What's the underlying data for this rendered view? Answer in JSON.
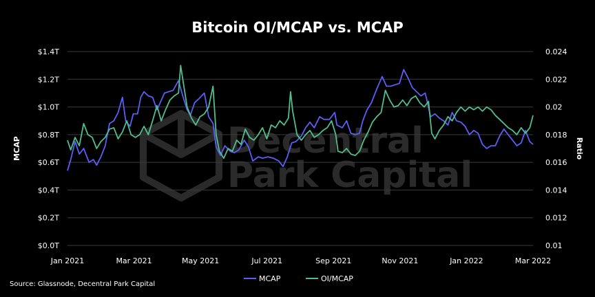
{
  "chart_data": {
    "type": "line",
    "title": "Bitcoin OI/MCAP vs. MCAP",
    "ylabel_left": "MCAP",
    "ylabel_right": "Ratio",
    "y_left_ticks": [
      "$0.0T",
      "$0.2T",
      "$0.4T",
      "$0.6T",
      "$0.8T",
      "$1.0T",
      "$1.2T",
      "$1.4T"
    ],
    "y_left_range": [
      0.0,
      1.4
    ],
    "y_right_ticks": [
      "0.01",
      "0.012",
      "0.014",
      "0.016",
      "0.018",
      "0.02",
      "0.022",
      "0.024"
    ],
    "y_right_range": [
      0.01,
      0.024
    ],
    "x_ticks": [
      "Jan 2021",
      "Mar 2021",
      "May 2021",
      "Jul 2021",
      "Sep 2021",
      "Nov 2021",
      "Jan 2022",
      "Mar 2022"
    ],
    "x_range": [
      "2021-01-01",
      "2022-03-09"
    ],
    "grid": true,
    "legend_position": "bottom-center",
    "series": [
      {
        "name": "MCAP",
        "axis": "left",
        "color": "#5b5ff5",
        "points": [
          [
            "2021-01-01",
            0.54
          ],
          [
            "2021-01-04",
            0.62
          ],
          [
            "2021-01-08",
            0.75
          ],
          [
            "2021-01-12",
            0.66
          ],
          [
            "2021-01-16",
            0.7
          ],
          [
            "2021-01-21",
            0.6
          ],
          [
            "2021-01-25",
            0.62
          ],
          [
            "2021-01-28",
            0.58
          ],
          [
            "2021-02-01",
            0.64
          ],
          [
            "2021-02-05",
            0.72
          ],
          [
            "2021-02-09",
            0.88
          ],
          [
            "2021-02-13",
            0.9
          ],
          [
            "2021-02-17",
            0.96
          ],
          [
            "2021-02-21",
            1.07
          ],
          [
            "2021-02-24",
            0.9
          ],
          [
            "2021-02-28",
            0.86
          ],
          [
            "2021-03-03",
            0.95
          ],
          [
            "2021-03-07",
            0.95
          ],
          [
            "2021-03-10",
            1.07
          ],
          [
            "2021-03-13",
            1.11
          ],
          [
            "2021-03-17",
            1.08
          ],
          [
            "2021-03-21",
            1.07
          ],
          [
            "2021-03-25",
            0.98
          ],
          [
            "2021-03-28",
            1.03
          ],
          [
            "2021-04-01",
            1.1
          ],
          [
            "2021-04-05",
            1.11
          ],
          [
            "2021-04-09",
            1.12
          ],
          [
            "2021-04-14",
            1.19
          ],
          [
            "2021-04-18",
            1.08
          ],
          [
            "2021-04-22",
            0.98
          ],
          [
            "2021-04-25",
            0.94
          ],
          [
            "2021-04-29",
            1.03
          ],
          [
            "2021-05-03",
            1.06
          ],
          [
            "2021-05-08",
            1.1
          ],
          [
            "2021-05-12",
            0.93
          ],
          [
            "2021-05-16",
            0.88
          ],
          [
            "2021-05-19",
            0.71
          ],
          [
            "2021-05-23",
            0.65
          ],
          [
            "2021-05-27",
            0.72
          ],
          [
            "2021-06-01",
            0.68
          ],
          [
            "2021-06-05",
            0.67
          ],
          [
            "2021-06-09",
            0.69
          ],
          [
            "2021-06-14",
            0.76
          ],
          [
            "2021-06-18",
            0.71
          ],
          [
            "2021-06-22",
            0.61
          ],
          [
            "2021-06-27",
            0.64
          ],
          [
            "2021-07-01",
            0.63
          ],
          [
            "2021-07-06",
            0.64
          ],
          [
            "2021-07-11",
            0.63
          ],
          [
            "2021-07-16",
            0.61
          ],
          [
            "2021-07-20",
            0.57
          ],
          [
            "2021-07-24",
            0.64
          ],
          [
            "2021-07-28",
            0.74
          ],
          [
            "2021-08-01",
            0.75
          ],
          [
            "2021-08-06",
            0.79
          ],
          [
            "2021-08-10",
            0.85
          ],
          [
            "2021-08-14",
            0.89
          ],
          [
            "2021-08-18",
            0.85
          ],
          [
            "2021-08-23",
            0.93
          ],
          [
            "2021-08-27",
            0.91
          ],
          [
            "2021-09-01",
            0.91
          ],
          [
            "2021-09-06",
            0.96
          ],
          [
            "2021-09-08",
            0.87
          ],
          [
            "2021-09-13",
            0.85
          ],
          [
            "2021-09-17",
            0.9
          ],
          [
            "2021-09-21",
            0.81
          ],
          [
            "2021-09-25",
            0.8
          ],
          [
            "2021-09-29",
            0.81
          ],
          [
            "2021-10-02",
            0.9
          ],
          [
            "2021-10-06",
            0.98
          ],
          [
            "2021-10-10",
            1.03
          ],
          [
            "2021-10-15",
            1.13
          ],
          [
            "2021-10-20",
            1.22
          ],
          [
            "2021-10-24",
            1.15
          ],
          [
            "2021-10-28",
            1.15
          ],
          [
            "2021-11-01",
            1.16
          ],
          [
            "2021-11-05",
            1.17
          ],
          [
            "2021-11-09",
            1.27
          ],
          [
            "2021-11-13",
            1.21
          ],
          [
            "2021-11-17",
            1.14
          ],
          [
            "2021-11-21",
            1.11
          ],
          [
            "2021-11-25",
            1.08
          ],
          [
            "2021-11-29",
            1.1
          ],
          [
            "2021-12-04",
            0.93
          ],
          [
            "2021-12-08",
            0.95
          ],
          [
            "2021-12-12",
            0.92
          ],
          [
            "2021-12-16",
            0.9
          ],
          [
            "2021-12-20",
            0.87
          ],
          [
            "2021-12-24",
            0.96
          ],
          [
            "2021-12-28",
            0.9
          ],
          [
            "2022-01-01",
            0.89
          ],
          [
            "2022-01-05",
            0.86
          ],
          [
            "2022-01-09",
            0.8
          ],
          [
            "2022-01-13",
            0.83
          ],
          [
            "2022-01-17",
            0.81
          ],
          [
            "2022-01-21",
            0.73
          ],
          [
            "2022-01-25",
            0.7
          ],
          [
            "2022-01-29",
            0.72
          ],
          [
            "2022-02-02",
            0.72
          ],
          [
            "2022-02-06",
            0.79
          ],
          [
            "2022-02-10",
            0.84
          ],
          [
            "2022-02-14",
            0.8
          ],
          [
            "2022-02-18",
            0.76
          ],
          [
            "2022-02-22",
            0.72
          ],
          [
            "2022-02-26",
            0.74
          ],
          [
            "2022-03-02",
            0.83
          ],
          [
            "2022-03-06",
            0.75
          ],
          [
            "2022-03-09",
            0.73
          ]
        ]
      },
      {
        "name": "OI/MCAP",
        "axis": "right",
        "color": "#4fbf8f",
        "points": [
          [
            "2021-01-01",
            0.0176
          ],
          [
            "2021-01-04",
            0.0169
          ],
          [
            "2021-01-08",
            0.0178
          ],
          [
            "2021-01-12",
            0.0172
          ],
          [
            "2021-01-16",
            0.0188
          ],
          [
            "2021-01-20",
            0.018
          ],
          [
            "2021-01-24",
            0.0178
          ],
          [
            "2021-01-28",
            0.017
          ],
          [
            "2021-02-01",
            0.0175
          ],
          [
            "2021-02-05",
            0.0178
          ],
          [
            "2021-02-09",
            0.0184
          ],
          [
            "2021-02-13",
            0.0185
          ],
          [
            "2021-02-17",
            0.0177
          ],
          [
            "2021-02-21",
            0.0182
          ],
          [
            "2021-02-25",
            0.019
          ],
          [
            "2021-03-01",
            0.018
          ],
          [
            "2021-03-05",
            0.0178
          ],
          [
            "2021-03-09",
            0.018
          ],
          [
            "2021-03-13",
            0.0186
          ],
          [
            "2021-03-17",
            0.018
          ],
          [
            "2021-03-21",
            0.019
          ],
          [
            "2021-03-25",
            0.0201
          ],
          [
            "2021-03-29",
            0.019
          ],
          [
            "2021-04-02",
            0.0198
          ],
          [
            "2021-04-06",
            0.0205
          ],
          [
            "2021-04-10",
            0.0208
          ],
          [
            "2021-04-14",
            0.021
          ],
          [
            "2021-04-16",
            0.023
          ],
          [
            "2021-04-18",
            0.022
          ],
          [
            "2021-04-22",
            0.02
          ],
          [
            "2021-04-26",
            0.0192
          ],
          [
            "2021-04-30",
            0.0187
          ],
          [
            "2021-05-04",
            0.0193
          ],
          [
            "2021-05-08",
            0.0195
          ],
          [
            "2021-05-12",
            0.02
          ],
          [
            "2021-05-16",
            0.0215
          ],
          [
            "2021-05-19",
            0.018
          ],
          [
            "2021-05-22",
            0.0168
          ],
          [
            "2021-05-26",
            0.0163
          ],
          [
            "2021-05-30",
            0.017
          ],
          [
            "2021-06-03",
            0.0168
          ],
          [
            "2021-06-07",
            0.0176
          ],
          [
            "2021-06-11",
            0.0173
          ],
          [
            "2021-06-15",
            0.0184
          ],
          [
            "2021-06-19",
            0.0178
          ],
          [
            "2021-06-23",
            0.0176
          ],
          [
            "2021-06-27",
            0.018
          ],
          [
            "2021-07-01",
            0.0185
          ],
          [
            "2021-07-05",
            0.0177
          ],
          [
            "2021-07-09",
            0.0187
          ],
          [
            "2021-07-13",
            0.0185
          ],
          [
            "2021-07-17",
            0.019
          ],
          [
            "2021-07-21",
            0.0187
          ],
          [
            "2021-07-25",
            0.0192
          ],
          [
            "2021-07-27",
            0.0211
          ],
          [
            "2021-07-29",
            0.0197
          ],
          [
            "2021-08-02",
            0.018
          ],
          [
            "2021-08-06",
            0.0176
          ],
          [
            "2021-08-10",
            0.018
          ],
          [
            "2021-08-14",
            0.0183
          ],
          [
            "2021-08-18",
            0.0178
          ],
          [
            "2021-08-22",
            0.018
          ],
          [
            "2021-08-26",
            0.0183
          ],
          [
            "2021-08-30",
            0.0185
          ],
          [
            "2021-09-03",
            0.019
          ],
          [
            "2021-09-07",
            0.018
          ],
          [
            "2021-09-09",
            0.0168
          ],
          [
            "2021-09-13",
            0.0167
          ],
          [
            "2021-09-17",
            0.017
          ],
          [
            "2021-09-21",
            0.0166
          ],
          [
            "2021-09-25",
            0.0165
          ],
          [
            "2021-09-29",
            0.0168
          ],
          [
            "2021-10-03",
            0.0176
          ],
          [
            "2021-10-07",
            0.0182
          ],
          [
            "2021-10-11",
            0.0189
          ],
          [
            "2021-10-15",
            0.0193
          ],
          [
            "2021-10-19",
            0.0196
          ],
          [
            "2021-10-23",
            0.0212
          ],
          [
            "2021-10-27",
            0.0205
          ],
          [
            "2021-10-31",
            0.02
          ],
          [
            "2021-11-04",
            0.0201
          ],
          [
            "2021-11-08",
            0.0205
          ],
          [
            "2021-11-12",
            0.0201
          ],
          [
            "2021-11-16",
            0.0206
          ],
          [
            "2021-11-20",
            0.0208
          ],
          [
            "2021-11-24",
            0.0203
          ],
          [
            "2021-11-28",
            0.02
          ],
          [
            "2021-12-02",
            0.0204
          ],
          [
            "2021-12-05",
            0.0181
          ],
          [
            "2021-12-08",
            0.0177
          ],
          [
            "2021-12-12",
            0.0183
          ],
          [
            "2021-12-16",
            0.0187
          ],
          [
            "2021-12-20",
            0.0193
          ],
          [
            "2021-12-24",
            0.019
          ],
          [
            "2021-12-28",
            0.0196
          ],
          [
            "2022-01-01",
            0.02
          ],
          [
            "2022-01-05",
            0.0197
          ],
          [
            "2022-01-09",
            0.02
          ],
          [
            "2022-01-13",
            0.0198
          ],
          [
            "2022-01-17",
            0.02
          ],
          [
            "2022-01-21",
            0.0197
          ],
          [
            "2022-01-25",
            0.02
          ],
          [
            "2022-01-29",
            0.0198
          ],
          [
            "2022-02-02",
            0.0194
          ],
          [
            "2022-02-06",
            0.0191
          ],
          [
            "2022-02-10",
            0.0188
          ],
          [
            "2022-02-14",
            0.0185
          ],
          [
            "2022-02-18",
            0.0183
          ],
          [
            "2022-02-22",
            0.018
          ],
          [
            "2022-02-26",
            0.0185
          ],
          [
            "2022-03-02",
            0.0181
          ],
          [
            "2022-03-06",
            0.0185
          ],
          [
            "2022-03-09",
            0.0194
          ]
        ]
      }
    ]
  },
  "source": "Source: Glassnode, Decentral Park Capital",
  "watermark": {
    "line1": "Decentral",
    "line2": "Park Capital"
  },
  "colors": {
    "background": "#000000",
    "grid": "#3a3a3a",
    "text": "#ffffff",
    "watermark": "#2a2a2a"
  }
}
